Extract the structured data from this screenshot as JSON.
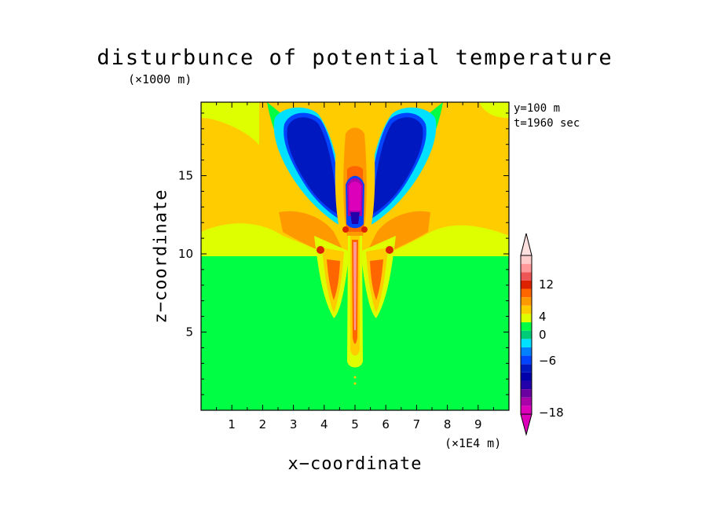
{
  "chart_data": {
    "type": "heatmap",
    "title": "disturbunce of potential temperature",
    "xlabel": "x−coordinate",
    "ylabel": "z−coordinate",
    "x_unit": "(×1E4 m)",
    "y_unit": "(×1000 m)",
    "annotations": [
      "y=100 m",
      "t=1960 sec"
    ],
    "xlim": [
      0,
      10
    ],
    "ylim": [
      0,
      19.7
    ],
    "x_ticks": [
      "1",
      "2",
      "3",
      "4",
      "5",
      "6",
      "7",
      "8",
      "9"
    ],
    "y_ticks": [
      "5",
      "10",
      "15"
    ],
    "colorbar": {
      "labels": [
        "12",
        "4",
        "0",
        "−6",
        "−18"
      ],
      "levels": [
        -18,
        -16,
        -14,
        -12,
        -10,
        -8,
        -6,
        -4,
        -2,
        0,
        1,
        2,
        3,
        4,
        6,
        8,
        10,
        12,
        14,
        16
      ],
      "colors": [
        "#dd00bb",
        "#aa00aa",
        "#6a00a0",
        "#2200aa",
        "#0000aa",
        "#0018c0",
        "#0044ff",
        "#0080ff",
        "#00e0ff",
        "#00cc77",
        "#00ff44",
        "#ddff00",
        "#ffcc00",
        "#ff9900",
        "#ff6600",
        "#dd2200",
        "#ee5555",
        "#ff9999",
        "#ffcccc"
      ]
    },
    "regions": [
      {
        "name": "background",
        "level": 0.5,
        "color": "#00ff44"
      },
      {
        "name": "upper layer",
        "level": 2.5,
        "color": "#ffcc00"
      },
      {
        "name": "left lobe",
        "level": -6,
        "color": "#0018c0"
      },
      {
        "name": "right lobe",
        "level": -6,
        "color": "#0018c0"
      },
      {
        "name": "central core",
        "level": -14,
        "color": "#cc00aa"
      },
      {
        "name": "central plume",
        "level": 12,
        "color": "#ff9999"
      }
    ]
  }
}
